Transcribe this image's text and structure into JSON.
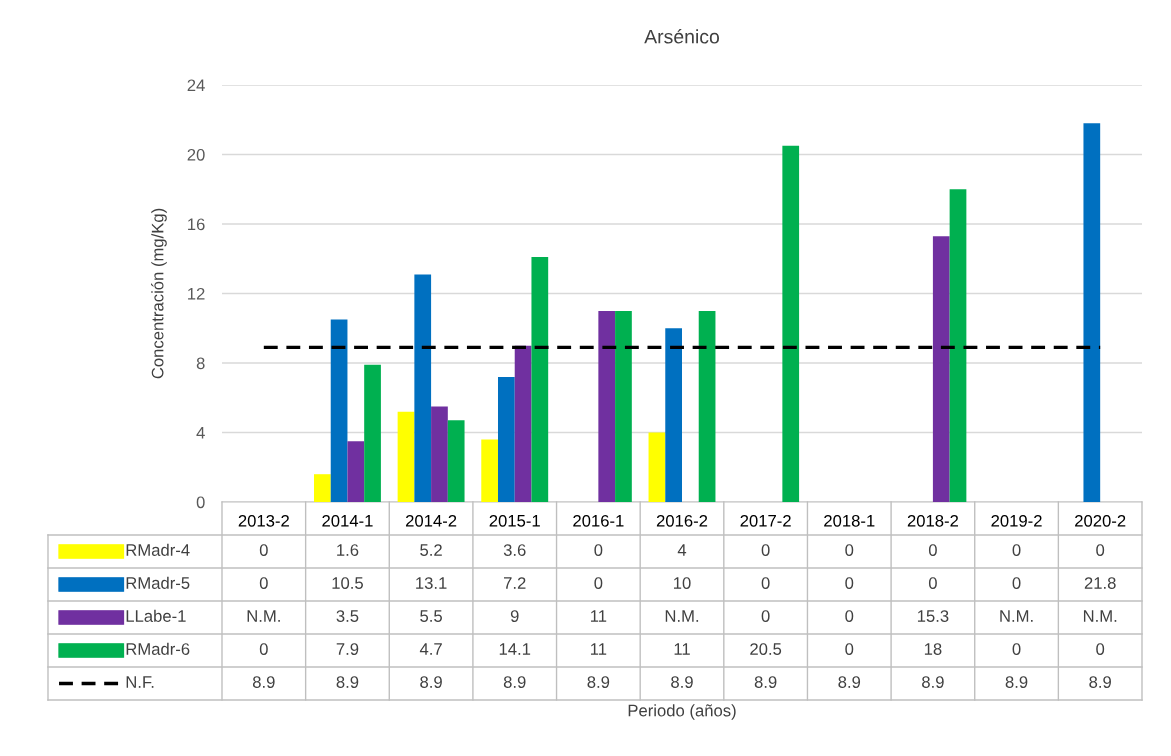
{
  "chart_data": {
    "type": "bar",
    "title": "Arsénico",
    "annotations": [
      "Periodo (años)"
    ],
    "ylabel": "Concentración (mg/Kg)",
    "categories": [
      "2013-2",
      "2014-1",
      "2014-2",
      "2015-1",
      "2016-1",
      "2016-2",
      "2017-2",
      "2018-1",
      "2018-2",
      "2019-2",
      "2020-2"
    ],
    "series": [
      {
        "name": "RMadr-4",
        "color": "#ffff00",
        "values": [
          0,
          1.6,
          5.2,
          3.6,
          0,
          4,
          0,
          0,
          0,
          0,
          0
        ],
        "value_labels": [
          "0",
          "1.6",
          "5.2",
          "3.6",
          "0",
          "4",
          "0",
          "0",
          "0",
          "0",
          "0"
        ]
      },
      {
        "name": "RMadr-5",
        "color": "#0070c0",
        "values": [
          0,
          10.5,
          13.1,
          7.2,
          0,
          10,
          0,
          0,
          0,
          0,
          21.8
        ],
        "value_labels": [
          "0",
          "10.5",
          "13.1",
          "7.2",
          "0",
          "10",
          "0",
          "0",
          "0",
          "0",
          "21.8"
        ]
      },
      {
        "name": "LLabe-1",
        "color": "#7030a0",
        "values": [
          null,
          3.5,
          5.5,
          9,
          11,
          null,
          0,
          0,
          15.3,
          null,
          null
        ],
        "value_labels": [
          "N.M.",
          "3.5",
          "5.5",
          "9",
          "11",
          "N.M.",
          "0",
          "0",
          "15.3",
          "N.M.",
          "N.M."
        ]
      },
      {
        "name": "RMadr-6",
        "color": "#00b050",
        "values": [
          0,
          7.9,
          4.7,
          14.1,
          11,
          11,
          20.5,
          0,
          18,
          0,
          0
        ],
        "value_labels": [
          "0",
          "7.9",
          "4.7",
          "14.1",
          "11",
          "11",
          "20.5",
          "0",
          "18",
          "0",
          "0"
        ]
      },
      {
        "name": "N.F.",
        "type": "line",
        "color": "#000000",
        "line_style": "dashed",
        "marker": "none",
        "values": [
          8.9,
          8.9,
          8.9,
          8.9,
          8.9,
          8.9,
          8.9,
          8.9,
          8.9,
          8.9,
          8.9
        ],
        "value_labels": [
          "8.9",
          "8.9",
          "8.9",
          "8.9",
          "8.9",
          "8.9",
          "8.9",
          "8.9",
          "8.9",
          "8.9",
          "8.9"
        ]
      }
    ],
    "ylim": [
      0,
      24
    ],
    "yticks": [
      0,
      4,
      8,
      12,
      16,
      20,
      24
    ],
    "grid": "y",
    "legend": "bottom left"
  }
}
